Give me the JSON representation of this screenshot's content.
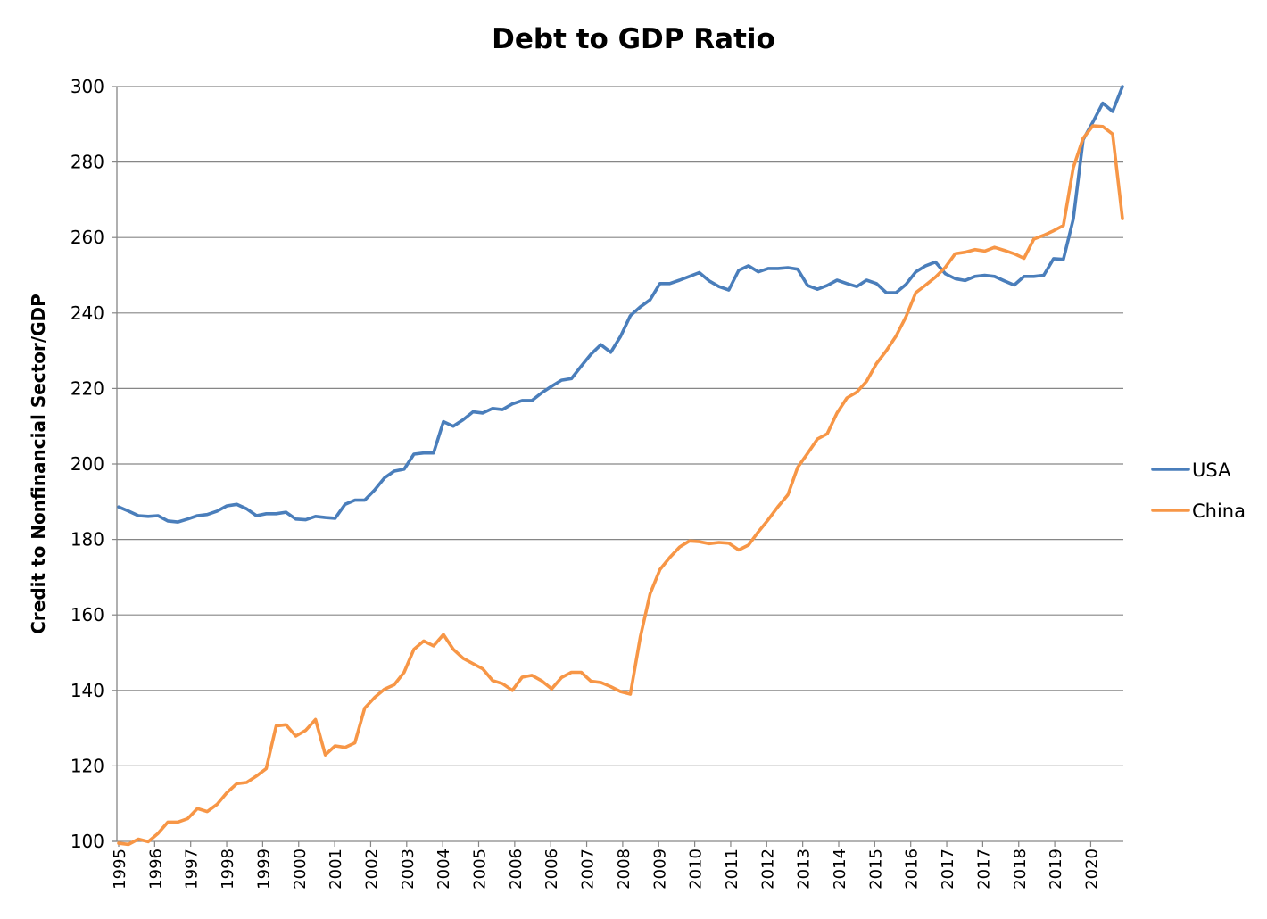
{
  "chart_data": {
    "type": "line",
    "title": "Debt to GDP Ratio",
    "xlabel": "",
    "ylabel": "Credit to Nonfinancial Sector/GDP",
    "ylim": [
      100,
      300
    ],
    "yticks": [
      "100",
      "120",
      "140",
      "160",
      "180",
      "200",
      "220",
      "240",
      "260",
      "280",
      "300"
    ],
    "xtick_labels": [
      "1995",
      "1996",
      "1997",
      "1998",
      "1999",
      "2000",
      "2001",
      "2002",
      "2003",
      "2004",
      "2005",
      "2006",
      "2006",
      "2007",
      "2008",
      "2009",
      "2010",
      "2011",
      "2012",
      "2013",
      "2014",
      "2015",
      "2016",
      "2017",
      "2017",
      "2018",
      "2019",
      "2020"
    ],
    "grid": true,
    "legend_position": "right",
    "series": [
      {
        "name": "USA",
        "color": "#4a7ebb",
        "values": [
          188.6,
          187.5,
          186.3,
          186.1,
          186.3,
          184.9,
          184.6,
          185.4,
          186.3,
          186.6,
          187.5,
          188.9,
          189.3,
          188.1,
          186.3,
          186.8,
          186.8,
          187.2,
          185.4,
          185.2,
          186.1,
          185.8,
          185.6,
          189.3,
          190.4,
          190.4,
          193.1,
          196.3,
          198.1,
          198.6,
          202.6,
          202.9,
          202.9,
          211.2,
          210.0,
          211.7,
          213.8,
          213.5,
          214.7,
          214.4,
          215.9,
          216.8,
          216.8,
          218.9,
          220.6,
          222.2,
          222.6,
          225.9,
          229.1,
          231.6,
          229.6,
          233.8,
          239.3,
          241.6,
          243.5,
          247.8,
          247.8,
          248.7,
          249.7,
          250.7,
          248.5,
          247.0,
          246.1,
          251.3,
          252.5,
          250.9,
          251.8,
          251.8,
          252.0,
          251.6,
          247.3,
          246.3,
          247.3,
          248.7,
          247.8,
          247.0,
          248.7,
          247.8,
          245.4,
          245.4,
          247.6,
          250.9,
          252.5,
          253.5,
          250.4,
          249.1,
          248.6,
          249.7,
          250.0,
          249.7,
          248.5,
          247.4,
          249.7,
          249.7,
          250.0,
          254.4,
          254.2,
          264.9,
          285.9,
          290.6,
          295.6,
          293.4,
          300.0
        ]
      },
      {
        "name": "China",
        "color": "#f79646",
        "values": [
          99.5,
          99.2,
          100.6,
          99.9,
          102.1,
          105.1,
          105.1,
          106.0,
          108.7,
          107.9,
          109.8,
          112.9,
          115.3,
          115.6,
          117.3,
          119.3,
          130.6,
          130.9,
          127.9,
          129.4,
          132.3,
          122.9,
          125.3,
          124.9,
          126.1,
          135.3,
          138.1,
          140.3,
          141.5,
          144.8,
          150.9,
          153.1,
          151.8,
          154.8,
          150.9,
          148.5,
          147.1,
          145.7,
          142.6,
          141.8,
          140.0,
          143.5,
          144.0,
          142.5,
          140.4,
          143.4,
          144.8,
          144.8,
          142.4,
          142.1,
          141.0,
          139.7,
          139.0,
          154.1,
          165.6,
          172.0,
          175.2,
          178.0,
          179.6,
          179.4,
          178.9,
          179.2,
          179.0,
          177.2,
          178.5,
          182.0,
          185.2,
          188.7,
          191.8,
          199.1,
          202.8,
          206.6,
          208.0,
          213.5,
          217.5,
          219.0,
          221.9,
          226.6,
          230.0,
          233.9,
          239.0,
          245.4,
          247.4,
          249.5,
          252.1,
          255.7,
          256.1,
          256.8,
          256.4,
          257.4,
          256.6,
          255.7,
          254.5,
          259.6,
          260.6,
          261.8,
          263.2,
          278.5,
          286.3,
          289.6,
          289.4,
          287.4,
          265.0
        ]
      }
    ]
  }
}
